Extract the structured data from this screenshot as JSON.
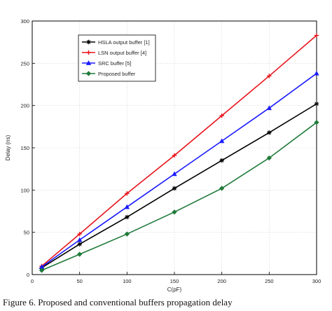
{
  "caption": "Figure 6. Proposed and conventional buffers propagation delay",
  "chart_data": {
    "type": "line",
    "xlabel": "C(pF)",
    "ylabel": "Delay (ns)",
    "xlim": [
      0,
      300
    ],
    "ylim": [
      0,
      300
    ],
    "xticks": [
      0,
      50,
      100,
      150,
      200,
      250,
      300
    ],
    "yticks": [
      0,
      50,
      100,
      150,
      200,
      250,
      300
    ],
    "grid": true,
    "legend_position": "top-left",
    "series": [
      {
        "name": "HSLA output buffer [1]",
        "color": "#000000",
        "marker": "star",
        "x": [
          10,
          50,
          100,
          150,
          200,
          250,
          300
        ],
        "y": [
          8,
          36,
          68,
          102,
          135,
          168,
          202
        ]
      },
      {
        "name": "LSN output buffer [4]",
        "color": "#e8141c",
        "marker": "plus",
        "x": [
          10,
          50,
          100,
          150,
          200,
          250,
          300
        ],
        "y": [
          10,
          48,
          96,
          141,
          188,
          235,
          283
        ]
      },
      {
        "name": "SRC buffer [5]",
        "color": "#1a1aff",
        "marker": "triangle",
        "x": [
          10,
          50,
          100,
          150,
          200,
          250,
          300
        ],
        "y": [
          9,
          41,
          80,
          119,
          158,
          197,
          238
        ]
      },
      {
        "name": "Proposed buffer",
        "color": "#1f7a3a",
        "marker": "diamond",
        "x": [
          10,
          50,
          100,
          150,
          200,
          250,
          300
        ],
        "y": [
          5,
          24,
          48,
          74,
          102,
          138,
          180
        ]
      }
    ]
  }
}
